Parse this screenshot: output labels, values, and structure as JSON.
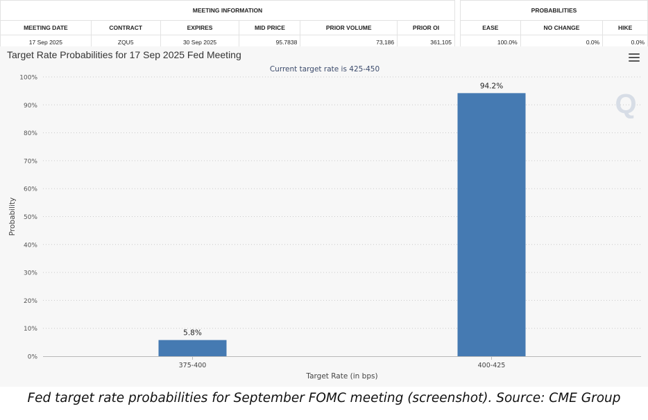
{
  "meeting_table": {
    "group_header": "MEETING INFORMATION",
    "columns": [
      "MEETING DATE",
      "CONTRACT",
      "EXPIRES",
      "MID PRICE",
      "PRIOR VOLUME",
      "PRIOR OI"
    ],
    "row": [
      "17 Sep 2025",
      "ZQU5",
      "30 Sep 2025",
      "95.7838",
      "73,186",
      "361,105"
    ]
  },
  "probabilities_table": {
    "group_header": "PROBABILITIES",
    "columns": [
      "EASE",
      "NO CHANGE",
      "HIKE"
    ],
    "row": [
      "100.0%",
      "0.0%",
      "0.0%"
    ]
  },
  "chart": {
    "title": "Target Rate Probabilities for 17 Sep 2025 Fed Meeting",
    "subtitle": "Current target rate is 425-450",
    "menu_icon": "hamburger-menu-icon",
    "watermark": "Q"
  },
  "chart_data": {
    "type": "bar",
    "title": "Target Rate Probabilities for 17 Sep 2025 Fed Meeting",
    "subtitle": "Current target rate is 425-450",
    "xlabel": "Target Rate (in bps)",
    "ylabel": "Probability",
    "categories": [
      "375-400",
      "400-425"
    ],
    "values": [
      5.8,
      94.2
    ],
    "data_labels": [
      "5.8%",
      "94.2%"
    ],
    "ylim": [
      0,
      100
    ],
    "yticks": [
      0,
      10,
      20,
      30,
      40,
      50,
      60,
      70,
      80,
      90,
      100
    ],
    "ytick_format": "%",
    "grid": true,
    "bar_color": "#457ab2"
  },
  "caption": "Fed target rate probabilities for September FOMC meeting (screenshot). Source: CME Group"
}
